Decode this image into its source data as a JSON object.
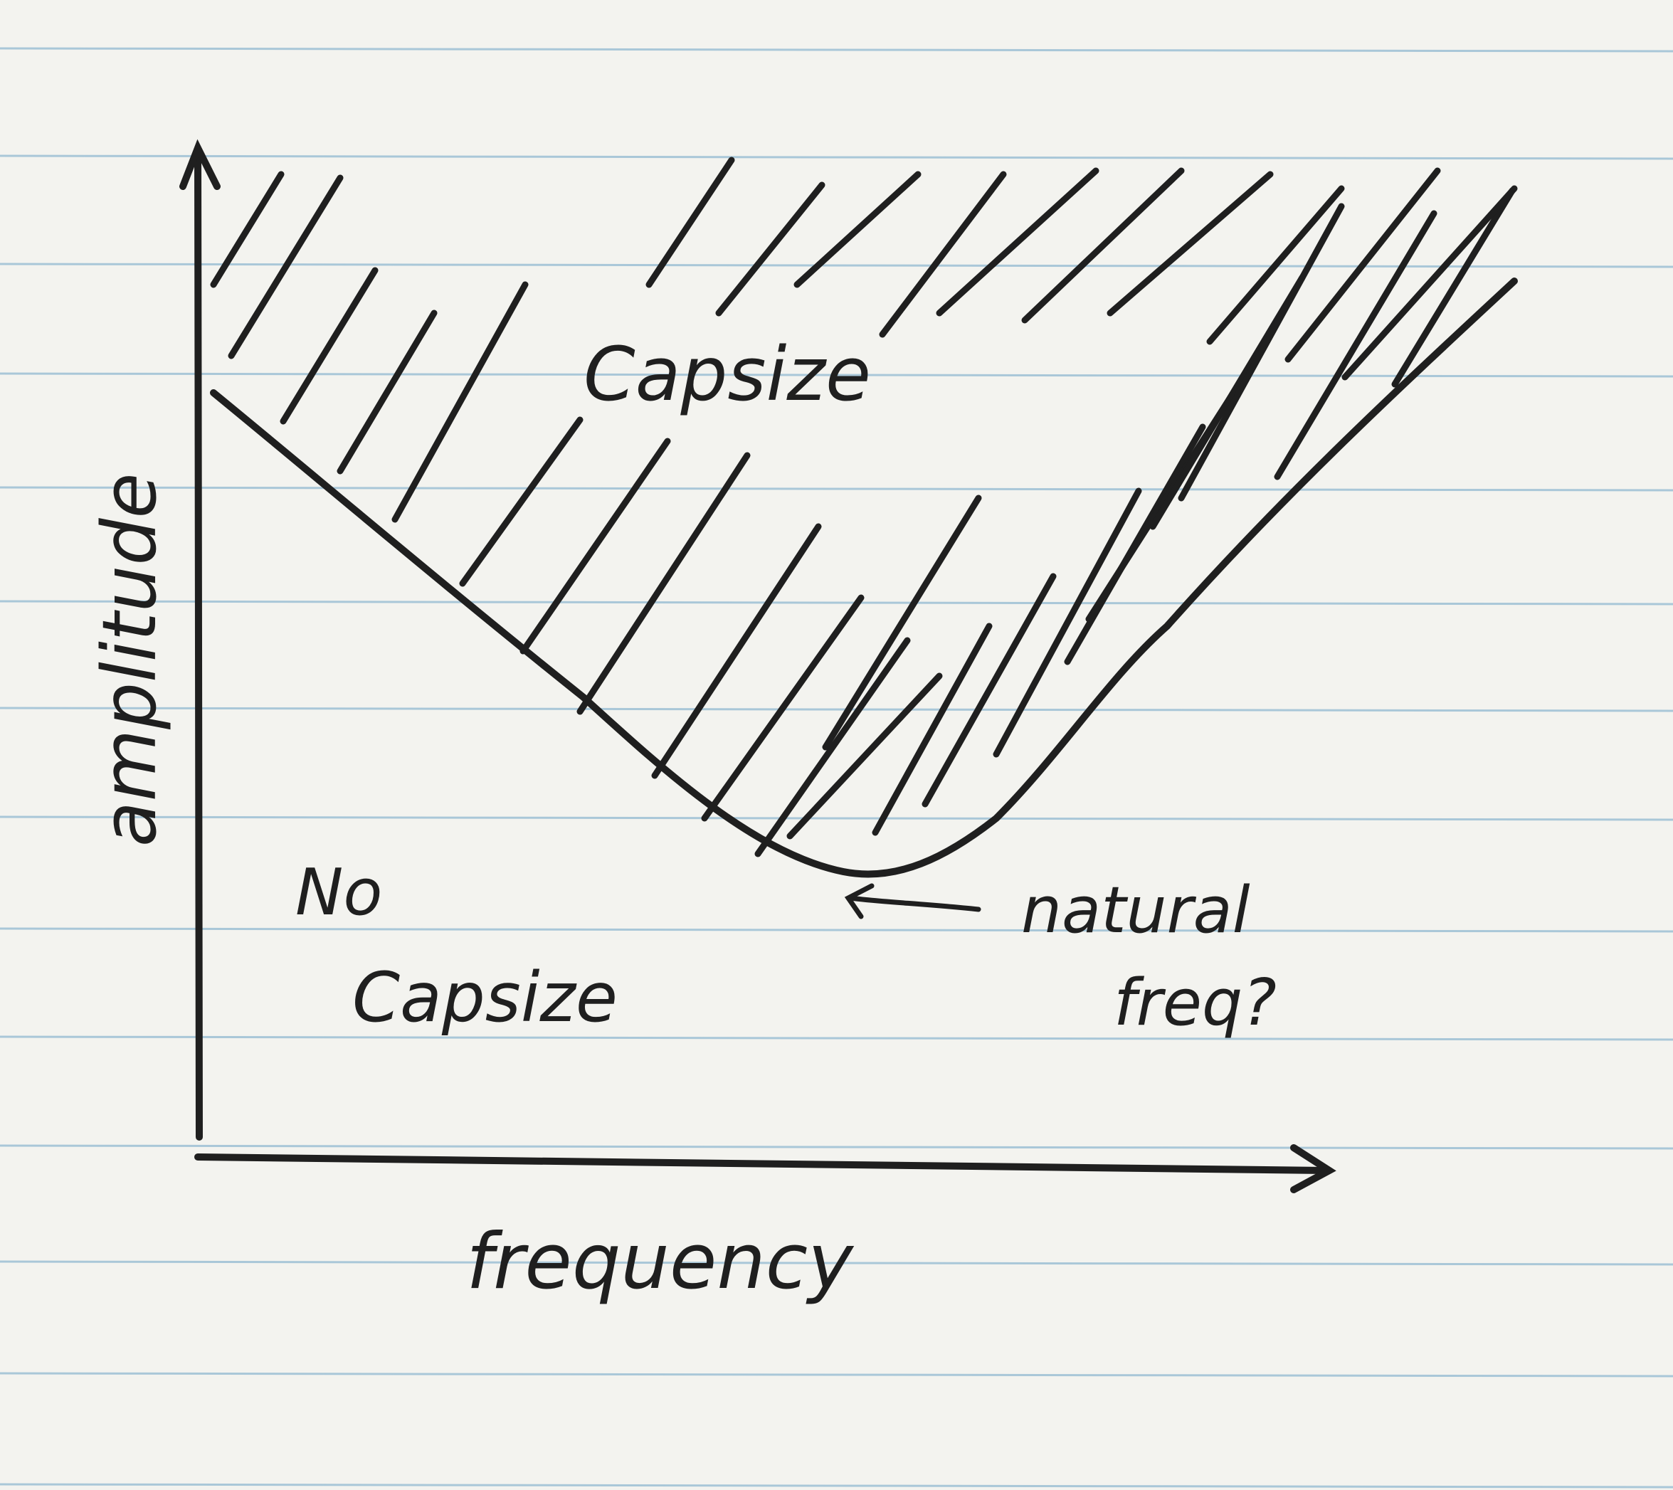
{
  "diagram": {
    "y_axis_label": "amplitude",
    "x_axis_label": "frequency",
    "region_above": "Capsize",
    "region_below_line1": "No",
    "region_below_line2": "Capsize",
    "annotation_line1": "natural",
    "annotation_line2": "freq?"
  },
  "colors": {
    "paper": "#f3f3ef",
    "ruled_line": "#a9c7d8",
    "ink": "#1f1f1f"
  }
}
